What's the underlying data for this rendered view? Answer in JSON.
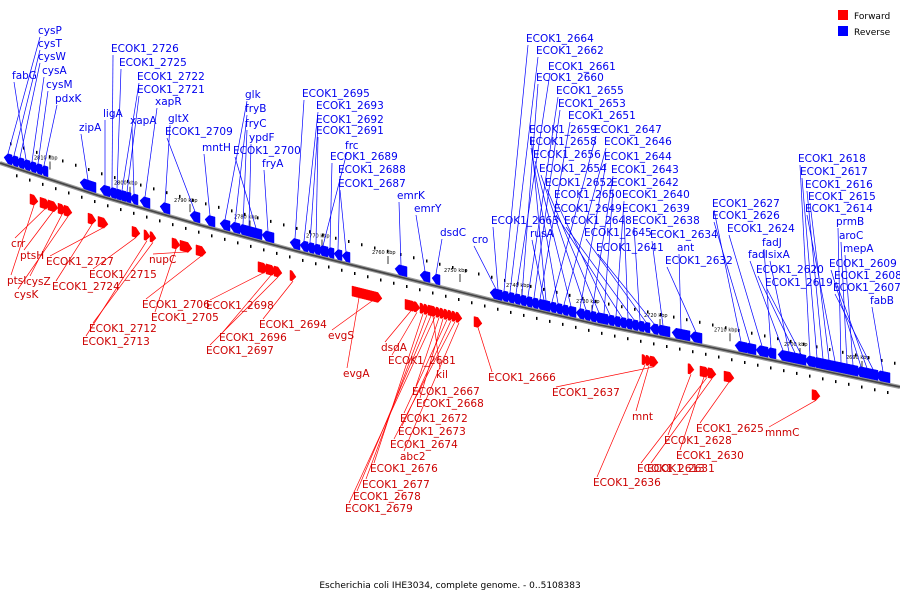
{
  "legend": {
    "forward": {
      "label": "Forward",
      "color": "#ff0000"
    },
    "reverse": {
      "label": "Reverse",
      "color": "#0000ff"
    }
  },
  "caption": "Escherichia coli IHE3034, complete genome. - 0..5108383",
  "scale_labels": [
    "2810 kbp",
    "2800 kbp",
    "2790 kbp",
    "2780 kbp",
    "2770 kbp",
    "2760 kbp",
    "2750 kbp",
    "2740 kbp",
    "2730 kbp",
    "2720 kbp",
    "2710 kbp",
    "2700 kbp",
    "2690 kbp"
  ],
  "reverse_labels": [
    "cysP",
    "cysT",
    "cysW",
    "fabG",
    "cysA",
    "cysM",
    "pdxK",
    "zipA",
    "ECOK1_2726",
    "ECOK1_2725",
    "ECOK1_2722",
    "ECOK1_2721",
    "ligA",
    "xapR",
    "xapA",
    "gltX",
    "ECOK1_2709",
    "mntH",
    "glk",
    "fryB",
    "fryC",
    "ypdF",
    "ECOK1_2700",
    "fryA",
    "ECOK1_2695",
    "ECOK1_2693",
    "ECOK1_2692",
    "ECOK1_2691",
    "frc",
    "ECOK1_2689",
    "ECOK1_2688",
    "ECOK1_2687",
    "emrK",
    "emrY",
    "dsdC",
    "cro",
    "ECOK1_2664",
    "ECOK1_2662",
    "ECOK1_2661",
    "ECOK1_2660",
    "ECOK1_2655",
    "ECOK1_2653",
    "ECOK1_2651",
    "ECOK1_2659",
    "ECOK1_2647",
    "ECOK1_2658",
    "ECOK1_2646",
    "ECOK1_2656",
    "ECOK1_2644",
    "ECOK1_2654",
    "ECOK1_2643",
    "ECOK1_2652",
    "ECOK1_2642",
    "ECOK1_2650",
    "ECOK1_2640",
    "ECOK1_2649",
    "ECOK1_2639",
    "ECOK1_2663",
    "ECOK1_2648",
    "ECOK1_2638",
    "rusA",
    "ECOK1_2645",
    "ECOK1_2634",
    "ECOK1_2641",
    "ant",
    "ECOK1_2632",
    "ECOK1_2627",
    "ECOK1_2626",
    "ECOK1_2624",
    "fadJ",
    "fadI",
    "sixA",
    "ECOK1_2620",
    "ECOK1_2619",
    "ECOK1_2618",
    "ECOK1_2617",
    "ECOK1_2616",
    "ECOK1_2615",
    "ECOK1_2614",
    "prmB",
    "aroC",
    "mepA",
    "ECOK1_2609",
    "ECOK1_2608",
    "ECOK1_2607",
    "fabB"
  ],
  "forward_labels": [
    "crr",
    "ptsH",
    "ptsI",
    "cysZ",
    "cysK",
    "ECOK1_2727",
    "ECOK1_2724",
    "ECOK1_2715",
    "nupC",
    "ECOK1_2712",
    "ECOK1_2713",
    "ECOK1_2706",
    "ECOK1_2705",
    "ECOK1_2698",
    "ECOK1_2696",
    "ECOK1_2697",
    "ECOK1_2694",
    "evgS",
    "evgA",
    "dsdA",
    "ECOK1_2681",
    "kil",
    "ECOK1_2667",
    "ECOK1_2668",
    "ECOK1_2672",
    "ECOK1_2673",
    "ECOK1_2674",
    "abc2",
    "ECOK1_2676",
    "ECOK1_2677",
    "ECOK1_2678",
    "ECOK1_2679",
    "ECOK1_2666",
    "ECOK1_2637",
    "mnt",
    "ECOK1_2636",
    "ECOK1_2625",
    "ECOK1_2628",
    "ECOK1_2630",
    "ECOK1_2631",
    "ECOK1_2613",
    "mnmC"
  ]
}
